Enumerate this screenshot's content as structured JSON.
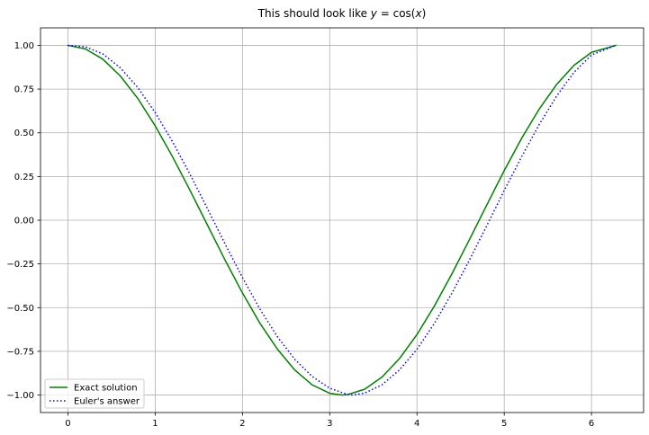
{
  "chart_data": {
    "type": "line",
    "title": {
      "prefix": "This should look like ",
      "math_var": "y",
      "math_eq": " = cos(",
      "math_arg": "x",
      "math_close": ")"
    },
    "xlabel": "",
    "ylabel": "",
    "xlim": [
      -0.314,
      6.597
    ],
    "ylim": [
      -1.1,
      1.1
    ],
    "xticks": [
      0,
      1,
      2,
      3,
      4,
      5,
      6
    ],
    "xtick_labels": [
      "0",
      "1",
      "2",
      "3",
      "4",
      "5",
      "6"
    ],
    "yticks": [
      1.0,
      0.75,
      0.5,
      0.25,
      0.0,
      -0.25,
      -0.5,
      -0.75,
      -1.0
    ],
    "ytick_labels": [
      "1.00",
      "0.75",
      "0.50",
      "0.25",
      "0.00",
      "−0.25",
      "−0.50",
      "−0.75",
      "−1.00"
    ],
    "grid": true,
    "legend_position": "lower-left",
    "series": [
      {
        "name": "Exact solution",
        "color": "#008000",
        "style": "solid",
        "x": [
          0.0,
          0.2,
          0.4,
          0.6,
          0.8,
          1.0,
          1.2,
          1.4,
          1.6,
          1.8,
          2.0,
          2.2,
          2.4,
          2.6,
          2.8,
          3.0,
          3.14,
          3.2,
          3.4,
          3.6,
          3.8,
          4.0,
          4.2,
          4.4,
          4.6,
          4.8,
          5.0,
          5.2,
          5.4,
          5.6,
          5.8,
          6.0,
          6.28
        ],
        "y": [
          1.0,
          0.98,
          0.921,
          0.825,
          0.697,
          0.54,
          0.362,
          0.17,
          -0.029,
          -0.227,
          -0.416,
          -0.589,
          -0.737,
          -0.857,
          -0.942,
          -0.99,
          -1.0,
          -0.998,
          -0.967,
          -0.897,
          -0.791,
          -0.654,
          -0.49,
          -0.307,
          -0.112,
          0.087,
          0.284,
          0.469,
          0.635,
          0.776,
          0.886,
          0.96,
          1.0
        ]
      },
      {
        "name": "Euler's answer",
        "color": "#0000ff",
        "style": "dotted",
        "x": [
          0.0,
          0.2,
          0.4,
          0.6,
          0.8,
          1.0,
          1.2,
          1.4,
          1.6,
          1.8,
          2.0,
          2.2,
          2.4,
          2.6,
          2.8,
          3.0,
          3.2,
          3.26,
          3.4,
          3.6,
          3.8,
          4.0,
          4.2,
          4.4,
          4.6,
          4.8,
          5.0,
          5.2,
          5.4,
          5.6,
          5.8,
          6.0,
          6.28
        ],
        "y": [
          1.0,
          0.992,
          0.951,
          0.872,
          0.759,
          0.616,
          0.448,
          0.262,
          0.065,
          -0.135,
          -0.328,
          -0.508,
          -0.666,
          -0.796,
          -0.894,
          -0.961,
          -0.996,
          -1.0,
          -0.989,
          -0.941,
          -0.856,
          -0.738,
          -0.59,
          -0.418,
          -0.229,
          -0.031,
          0.17,
          0.364,
          0.546,
          0.71,
          0.846,
          0.945,
          1.0
        ]
      }
    ]
  }
}
